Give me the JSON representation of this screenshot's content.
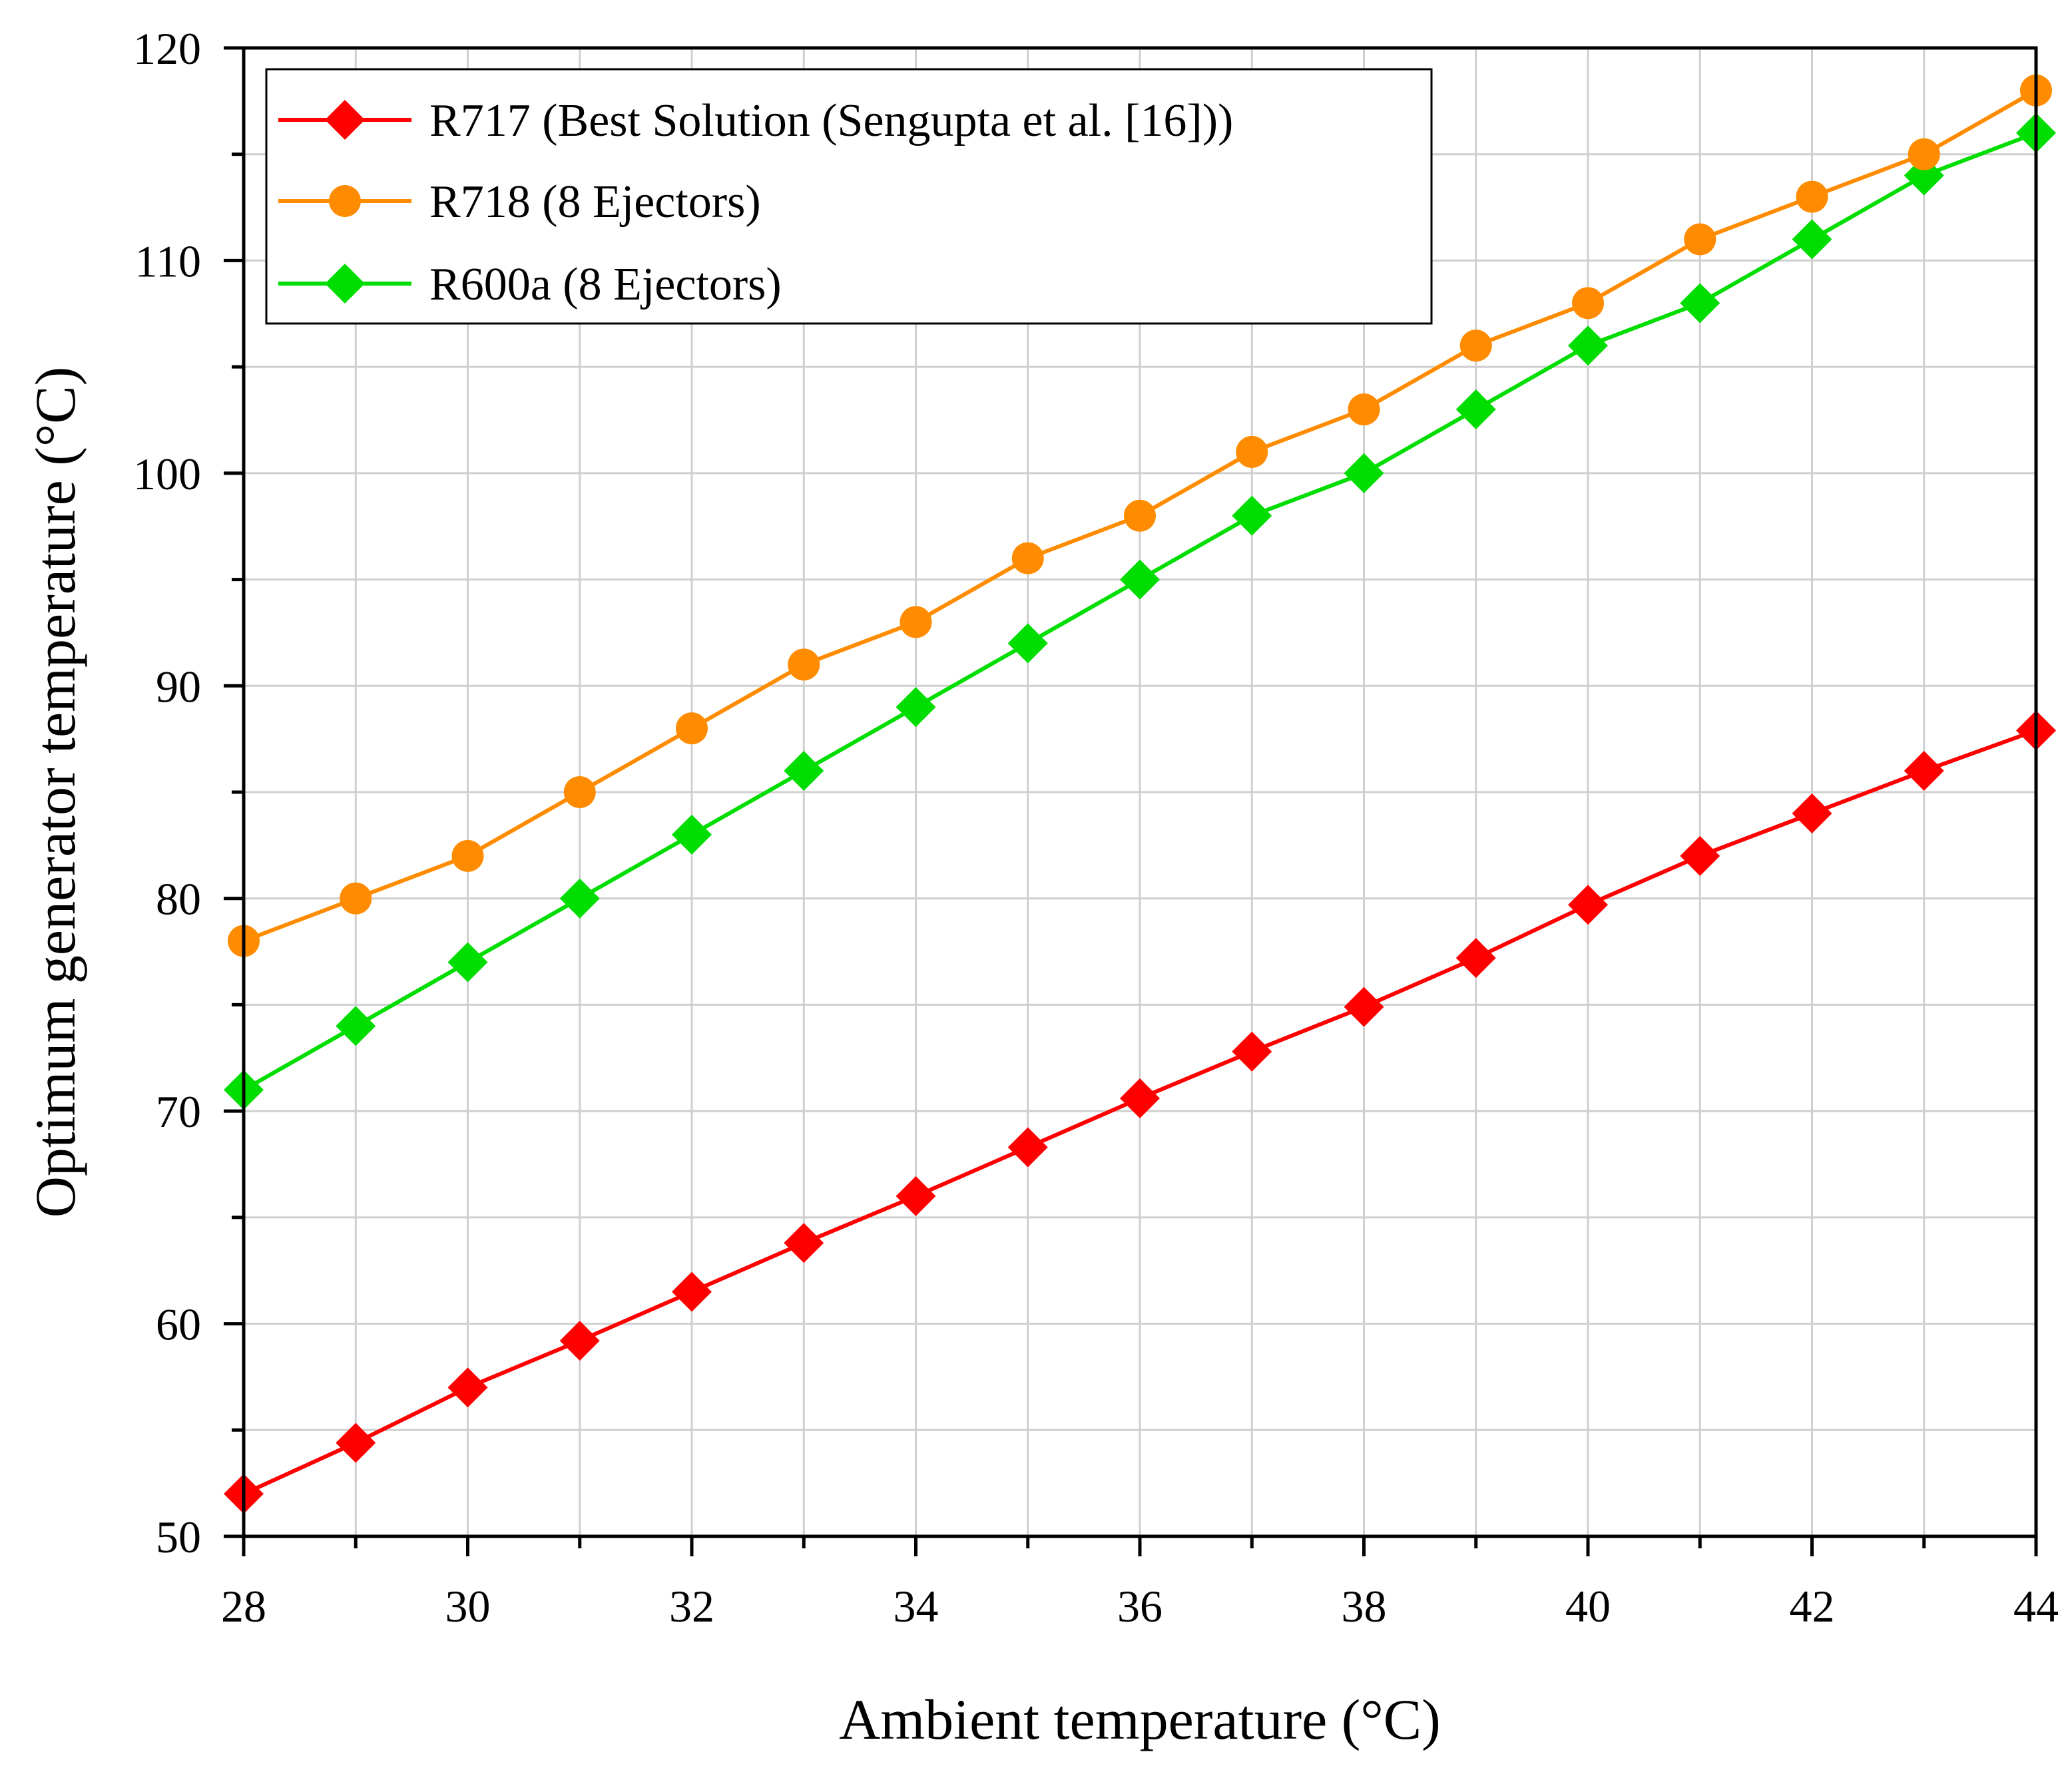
{
  "chart_data": {
    "type": "line",
    "title": "",
    "xlabel": "Ambient temperature (°C)",
    "ylabel": "Optimum generator temperature (°C)",
    "xlim": [
      28,
      44
    ],
    "ylim": [
      50,
      120
    ],
    "x": [
      28,
      29,
      30,
      31,
      32,
      33,
      34,
      35,
      36,
      37,
      38,
      39,
      40,
      41,
      42,
      43,
      44
    ],
    "x_ticks": [
      "28",
      "30",
      "32",
      "34",
      "36",
      "38",
      "40",
      "42",
      "44"
    ],
    "y_ticks": [
      "50",
      "60",
      "70",
      "80",
      "90",
      "100",
      "110",
      "120"
    ],
    "grid": true,
    "legend_position": "top-left",
    "series": [
      {
        "name": "R717 (Best Solution (Sengupta et al. [16]))",
        "marker": "diamond",
        "color": "#ff0000",
        "values": [
          52.0,
          54.4,
          57.0,
          59.2,
          61.5,
          63.8,
          66.0,
          68.3,
          70.6,
          72.8,
          74.9,
          77.2,
          79.7,
          82.0,
          84.0,
          86.0,
          87.9
        ]
      },
      {
        "name": "R718 (8 Ejectors)",
        "marker": "circle",
        "color": "#ff8c00",
        "values": [
          78,
          80,
          82,
          85,
          88,
          91,
          93,
          96,
          98,
          101,
          103,
          106,
          108,
          111,
          113,
          115,
          118
        ]
      },
      {
        "name": "R600a (8 Ejectors)",
        "marker": "diamond",
        "color": "#00dd00",
        "values": [
          71,
          74,
          77,
          80,
          83,
          86,
          89,
          92,
          95,
          98,
          100,
          103,
          106,
          108,
          111,
          114,
          116
        ]
      }
    ]
  }
}
